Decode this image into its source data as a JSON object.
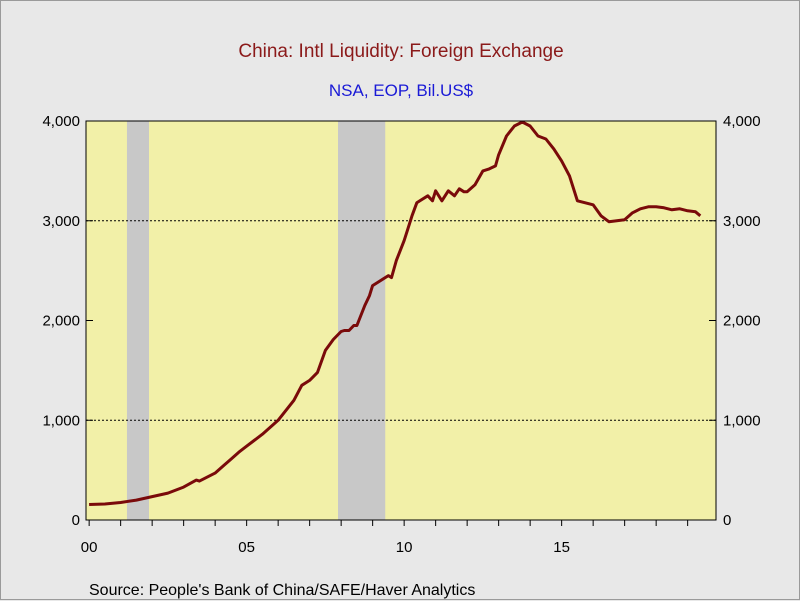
{
  "chart_data": {
    "type": "line",
    "title": "China: Intl Liquidity: Foreign Exchange",
    "subtitle": "NSA, EOP, Bil.US$",
    "source": "Source:  People's Bank of China/SAFE/Haver Analytics",
    "ylim": [
      0,
      4000
    ],
    "y_ticks": [
      0,
      1000,
      2000,
      3000,
      4000
    ],
    "y_tick_labels": [
      "0",
      "1,000",
      "2,000",
      "3,000",
      "4,000"
    ],
    "xlim": [
      1999.9,
      2019.9
    ],
    "x_ticks": [
      2000,
      2005,
      2010,
      2015
    ],
    "x_tick_labels": [
      "00",
      "05",
      "10",
      "15"
    ],
    "grid": "horizontal dotted at 1,000 and 3,000",
    "plot_background": "#f2f0a8",
    "line_color": "#7a0a0a",
    "recession_color": "#c8c8c8",
    "recessions": [
      [
        2001.2,
        2001.9
      ],
      [
        2007.9,
        2009.4
      ]
    ],
    "series": [
      {
        "x": [
          2000.0,
          2000.5,
          2001.0,
          2001.5,
          2002.0,
          2002.5,
          2003.0,
          2003.4,
          2003.5,
          2004.0,
          2004.25,
          2004.5,
          2004.75,
          2005.0,
          2005.5,
          2006.0,
          2006.5,
          2006.75,
          2007.0,
          2007.25,
          2007.5,
          2007.75,
          2008.0,
          2008.1,
          2008.25,
          2008.4,
          2008.5,
          2008.75,
          2008.9,
          2009.0,
          2009.25,
          2009.5,
          2009.6,
          2009.75,
          2010.0,
          2010.1,
          2010.25,
          2010.4,
          2010.5,
          2010.75,
          2010.9,
          2011.0,
          2011.2,
          2011.4,
          2011.6,
          2011.75,
          2011.9,
          2012.0,
          2012.25,
          2012.5,
          2012.7,
          2012.9,
          2013.0,
          2013.25,
          2013.5,
          2013.75,
          2014.0,
          2014.25,
          2014.5,
          2014.75,
          2015.0,
          2015.25,
          2015.5,
          2015.75,
          2016.0,
          2016.25,
          2016.5,
          2016.75,
          2017.0,
          2017.25,
          2017.5,
          2017.75,
          2018.0,
          2018.25,
          2018.5,
          2018.75,
          2019.0,
          2019.25,
          2019.4
        ],
        "values": [
          155,
          160,
          175,
          200,
          235,
          270,
          330,
          400,
          390,
          470,
          540,
          610,
          680,
          740,
          860,
          1000,
          1200,
          1350,
          1400,
          1480,
          1700,
          1810,
          1890,
          1900,
          1900,
          1950,
          1950,
          2150,
          2250,
          2350,
          2400,
          2450,
          2430,
          2600,
          2800,
          2900,
          3050,
          3180,
          3200,
          3250,
          3200,
          3300,
          3200,
          3300,
          3250,
          3320,
          3290,
          3290,
          3360,
          3500,
          3520,
          3550,
          3660,
          3850,
          3950,
          3990,
          3950,
          3850,
          3820,
          3720,
          3600,
          3450,
          3200,
          3180,
          3160,
          3050,
          2990,
          3000,
          3010,
          3080,
          3120,
          3140,
          3140,
          3130,
          3110,
          3120,
          3100,
          3090,
          3050
        ]
      }
    ]
  }
}
